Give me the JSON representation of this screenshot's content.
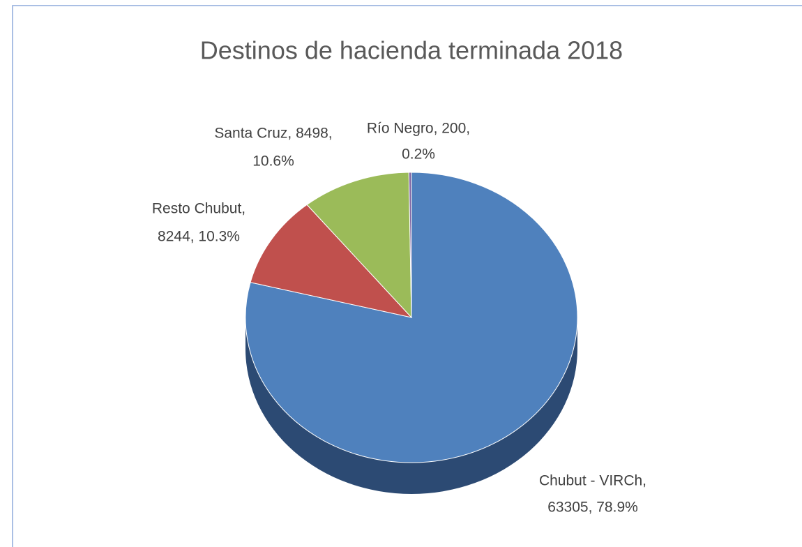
{
  "chart_data": {
    "type": "pie",
    "title": "Destinos de hacienda terminada 2018",
    "values": [
      63305,
      8244,
      8498,
      200
    ],
    "value_labels": [
      [
        "Chubut  - VIRCh,",
        "63305, 78.9%"
      ],
      [
        "Resto Chubut,",
        "8244, 10.3%"
      ],
      [
        "Santa Cruz, 8498,",
        "10.6%"
      ],
      [
        "Río Negro, 200,",
        "0.2%"
      ]
    ],
    "colors": [
      "#4f81bd",
      "#c0504d",
      "#9bbb59",
      "#8064a2"
    ],
    "side_color": "#2c4a73"
  }
}
